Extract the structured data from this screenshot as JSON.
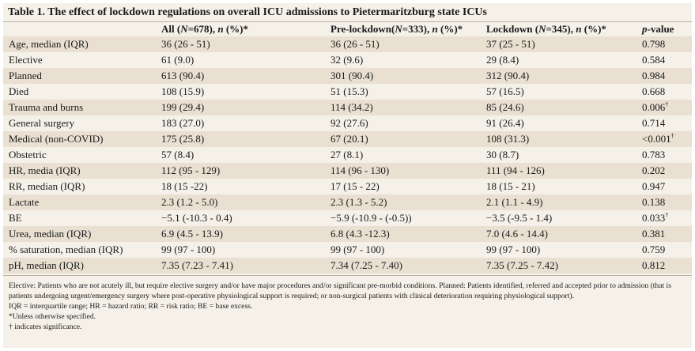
{
  "title": "Table 1. The effect of lockdown regulations on overall ICU admissions to Pietermaritzburg state ICUs",
  "headers": {
    "col0": "",
    "col1": "All (N=678), n (%)*",
    "col2": "Pre-lockdown(N=333), n (%)*",
    "col3": "Lockdown (N=345), n (%)*",
    "col4": "p-value"
  },
  "rows": [
    {
      "label": "Age, median (IQR)",
      "all": "36 (26 - 51)",
      "pre": "36 (26 - 51)",
      "lock": "37 (25 - 51)",
      "p": "0.798",
      "sig": ""
    },
    {
      "label": "Elective",
      "all": "61 (9.0)",
      "pre": "32 (9.6)",
      "lock": "29 (8.4)",
      "p": "0.584",
      "sig": ""
    },
    {
      "label": "Planned",
      "all": "613 (90.4)",
      "pre": "301 (90.4)",
      "lock": "312 (90.4)",
      "p": "0.984",
      "sig": ""
    },
    {
      "label": "Died",
      "all": "108 (15.9)",
      "pre": "51 (15.3)",
      "lock": "57 (16.5)",
      "p": "0.668",
      "sig": ""
    },
    {
      "label": "Trauma and burns",
      "all": "199 (29.4)",
      "pre": "114 (34.2)",
      "lock": "85 (24.6)",
      "p": "0.006",
      "sig": "†"
    },
    {
      "label": "General surgery",
      "all": "183 (27.0)",
      "pre": "92 (27.6)",
      "lock": "91 (26.4)",
      "p": "0.714",
      "sig": ""
    },
    {
      "label": "Medical (non-COVID)",
      "all": "175 (25.8)",
      "pre": "67 (20.1)",
      "lock": "108 (31.3)",
      "p": "<0.001",
      "sig": "†"
    },
    {
      "label": "Obstetric",
      "all": "57 (8.4)",
      "pre": "27 (8.1)",
      "lock": "30 (8.7)",
      "p": "0.783",
      "sig": ""
    },
    {
      "label": "HR, media (IQR)",
      "all": "112 (95 - 129)",
      "pre": "114 (96 - 130)",
      "lock": "111 (94 - 126)",
      "p": "0.202",
      "sig": ""
    },
    {
      "label": "RR, median (IQR)",
      "all": "18 (15 -22)",
      "pre": "17 (15 - 22)",
      "lock": "18 (15 - 21)",
      "p": "0.947",
      "sig": ""
    },
    {
      "label": "Lactate",
      "all": "2.3 (1.2 - 5.0)",
      "pre": "2.3 (1.3 - 5.2)",
      "lock": "2.1 (1.1 - 4.9)",
      "p": "0.138",
      "sig": ""
    },
    {
      "label": "BE",
      "all": "−5.1 (-10.3 - 0.4)",
      "pre": "−5.9 (-10.9 - (-0.5))",
      "lock": "−3.5 (-9.5 - 1.4)",
      "p": "0.033",
      "sig": "†"
    },
    {
      "label": "Urea, median (IQR)",
      "all": "6.9 (4.5 - 13.9)",
      "pre": "6.8 (4.3 -12.3)",
      "lock": "7.0 (4.6 - 14.4)",
      "p": "0.381",
      "sig": ""
    },
    {
      "label": "% saturation, median (IQR)",
      "all": "99 (97 - 100)",
      "pre": "99 (97 - 100)",
      "lock": "99 (97 - 100)",
      "p": "0.759",
      "sig": ""
    },
    {
      "label": "pH, median (IQR)",
      "all": "7.35 (7.23 - 7.41)",
      "pre": "7.34 (7.25 - 7.40)",
      "lock": "7.35 (7.25 - 7.42)",
      "p": "0.812",
      "sig": ""
    }
  ],
  "notes": [
    "Elective: Patients who are not acutely ill, but require elective surgery and/or have major procedures and/or significant pre-morbid conditions. Planned: Patients identified, referred and accepted prior to admission (that is patients undergoing urgent/emergency surgery where post-operative physiological support is required; or non-surgical patients with clinical deterioration requiring physiological support).",
    "IQR = interquartile range; HR = hazard ratio; RR = risk ratio; BE = base excess.",
    "*Unless otherwise specified.",
    "† indicates significance."
  ]
}
